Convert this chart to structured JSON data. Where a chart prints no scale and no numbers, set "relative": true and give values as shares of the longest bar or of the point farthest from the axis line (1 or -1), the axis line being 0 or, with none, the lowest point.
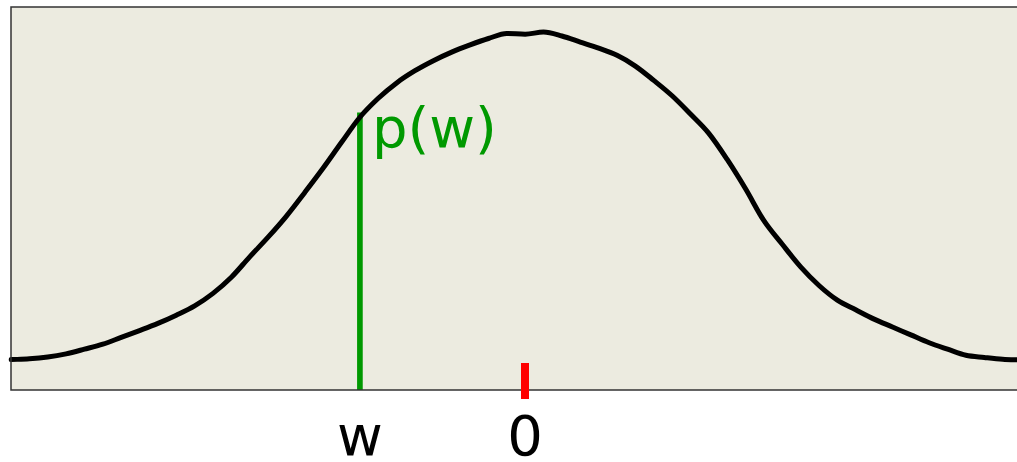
{
  "chart_data": {
    "type": "line",
    "relative": true,
    "marker": "none",
    "categories": [
      null,
      null,
      null,
      null,
      null,
      null,
      null,
      null,
      null,
      null,
      null,
      null,
      null,
      null,
      null,
      null,
      null,
      null,
      null,
      "w",
      null,
      null,
      null,
      null,
      null,
      null,
      null,
      null,
      "0",
      null,
      null,
      null,
      null,
      null,
      null,
      null,
      null,
      null,
      null,
      null,
      null,
      null,
      null,
      null,
      null,
      null,
      null,
      null,
      null,
      null,
      null,
      null,
      null,
      null,
      null,
      null
    ],
    "series": [
      {
        "color": "#000000",
        "values": [
          0.085,
          0.087,
          0.092,
          0.101,
          0.114,
          0.128,
          0.147,
          0.166,
          0.186,
          0.209,
          0.235,
          0.27,
          0.315,
          0.372,
          0.427,
          0.486,
          0.552,
          0.62,
          0.692,
          0.762,
          0.815,
          0.858,
          0.892,
          0.92,
          0.944,
          0.964,
          0.982,
          0.996,
          0.994,
          1.0,
          0.989,
          0.972,
          0.955,
          0.935,
          0.905,
          0.865,
          0.822,
          0.771,
          0.717,
          0.644,
          0.562,
          0.473,
          0.407,
          0.344,
          0.292,
          0.251,
          0.224,
          0.198,
          0.176,
          0.154,
          0.132,
          0.114,
          0.097,
          0.091,
          0.086,
          0.084
        ]
      },
      {
        "type": "bar",
        "name": "p(w)",
        "color": "#009900",
        "values": [
          null,
          null,
          null,
          null,
          null,
          null,
          null,
          null,
          null,
          null,
          null,
          null,
          null,
          null,
          null,
          null,
          null,
          null,
          null,
          0.774,
          null,
          null,
          null,
          null,
          null,
          null,
          null,
          null,
          null,
          null,
          null,
          null,
          null,
          null,
          null,
          null,
          null,
          null,
          null,
          null,
          null,
          null,
          null,
          null,
          null,
          null,
          null,
          null,
          null,
          null,
          null,
          null,
          null,
          null,
          null,
          null
        ]
      }
    ]
  }
}
